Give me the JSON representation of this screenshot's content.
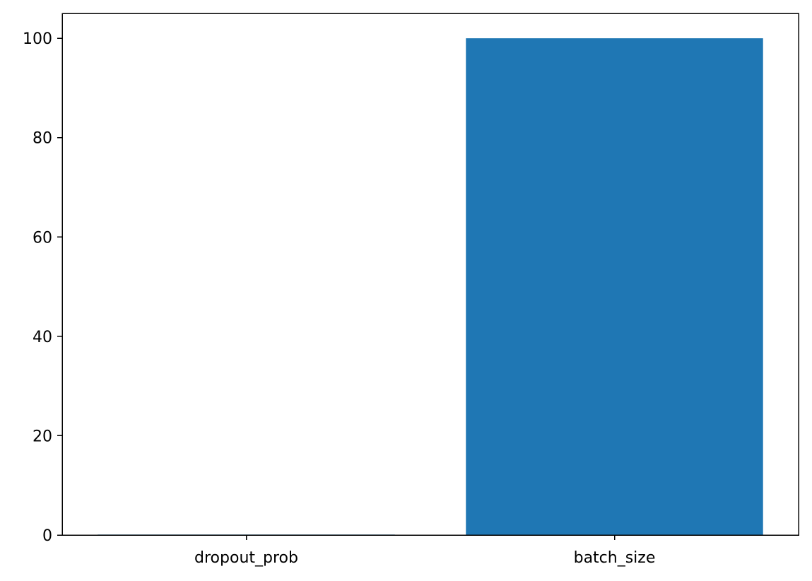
{
  "chart_data": {
    "type": "bar",
    "title": "",
    "xlabel": "",
    "ylabel": "",
    "categories": [
      "dropout_prob",
      "batch_size"
    ],
    "values": [
      0.1,
      100
    ],
    "ylim": [
      0,
      105
    ],
    "yticks": [
      0,
      20,
      40,
      60,
      80,
      100
    ],
    "ytick_labels": [
      "0",
      "20",
      "40",
      "60",
      "80",
      "100"
    ],
    "grid": false,
    "legend": "none",
    "bar_color": "#1f77b4"
  }
}
